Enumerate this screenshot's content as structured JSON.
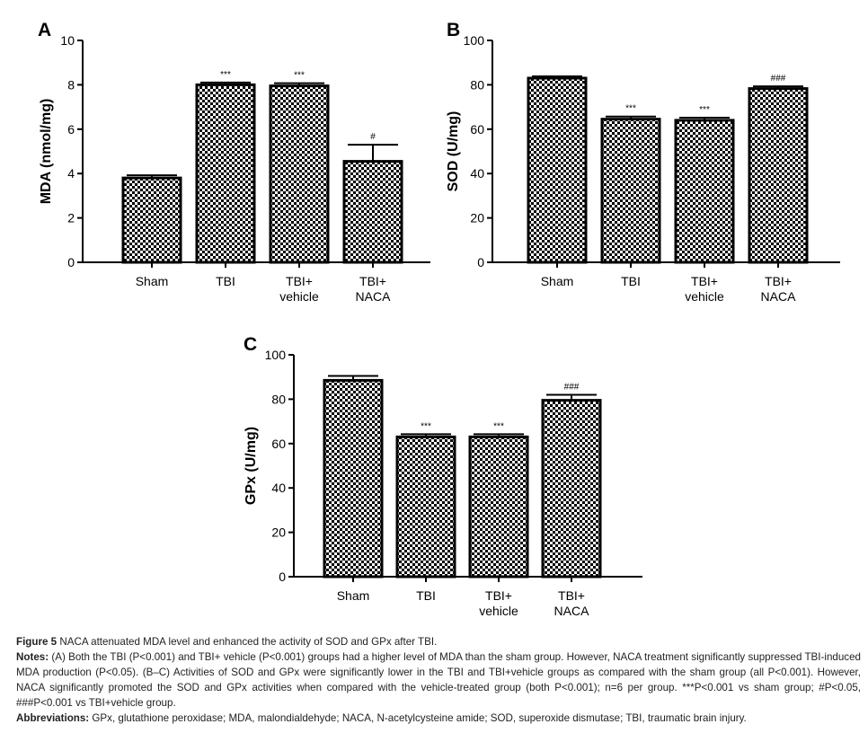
{
  "chart_data": [
    {
      "type": "bar",
      "panel": "A",
      "ylabel": "MDA (nmol/mg)",
      "ylim": [
        0,
        10
      ],
      "yticks": [
        "0",
        "2",
        "4",
        "6",
        "8",
        "10"
      ],
      "categories": [
        "Sham",
        "TBI",
        "TBI+\nvehicle",
        "TBI+\nNACA"
      ],
      "values": [
        3.8,
        8.0,
        7.95,
        4.55
      ],
      "errors": [
        0.12,
        0.1,
        0.12,
        0.75
      ],
      "significance": [
        "",
        "***",
        "***",
        "#"
      ]
    },
    {
      "type": "bar",
      "panel": "B",
      "ylabel": "SOD (U/mg)",
      "ylim": [
        0,
        100
      ],
      "yticks": [
        "0",
        "20",
        "40",
        "60",
        "80",
        "100"
      ],
      "categories": [
        "Sham",
        "TBI",
        "TBI+\nvehicle",
        "TBI+\nNACA"
      ],
      "values": [
        83,
        64.5,
        64,
        78.3
      ],
      "errors": [
        0.8,
        1.2,
        1.2,
        1.0
      ],
      "significance": [
        "",
        "***",
        "***",
        "###"
      ]
    },
    {
      "type": "bar",
      "panel": "C",
      "ylabel": "GPx (U/mg)",
      "ylim": [
        0,
        100
      ],
      "yticks": [
        "0",
        "20",
        "40",
        "60",
        "80",
        "100"
      ],
      "categories": [
        "Sham",
        "TBI",
        "TBI+\nvehicle",
        "TBI+\nNACA"
      ],
      "values": [
        88.5,
        63,
        63,
        79.5
      ],
      "errors": [
        2.0,
        1.2,
        1.2,
        2.5
      ],
      "significance": [
        "",
        "***",
        "***",
        "###"
      ]
    }
  ],
  "caption": {
    "figure_label": "Figure 5",
    "figure_title": "NACA attenuated MDA level and enhanced the activity of SOD and GPx after TBI.",
    "notes_label": "Notes:",
    "notes_text": "(A) Both the TBI (P<0.001) and TBI+ vehicle (P<0.001) groups had a higher level of MDA than the sham group. However, NACA treatment significantly suppressed TBI-induced MDA production (P<0.05). (B–C) Activities of SOD and GPx were significantly lower in the TBI and TBI+vehicle groups as compared with the sham group (all P<0.001). However, NACA significantly promoted the SOD and GPx activities when compared with the vehicle-treated group (both P<0.001); n=6 per group. ***P<0.001 vs sham group; #P<0.05, ###P<0.001 vs TBI+vehicle group.",
    "abbrev_label": "Abbreviations:",
    "abbrev_text": "GPx, glutathione peroxidase; MDA, malondialdehyde; NACA, N-acetylcysteine amide; SOD, superoxide dismutase; TBI, traumatic brain injury."
  }
}
